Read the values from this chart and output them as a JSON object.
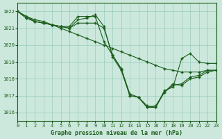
{
  "title": "Graphe pression niveau de la mer (hPa)",
  "bg_color": "#cce8dc",
  "grid_color": "#99ccbb",
  "line_color": "#1a5c1a",
  "marker": "+",
  "xlim": [
    0,
    23
  ],
  "ylim": [
    1015.5,
    1022.5
  ],
  "yticks": [
    1016,
    1017,
    1018,
    1019,
    1020,
    1021,
    1022
  ],
  "xticks": [
    0,
    1,
    2,
    3,
    4,
    5,
    6,
    7,
    8,
    9,
    10,
    11,
    12,
    13,
    14,
    15,
    16,
    17,
    18,
    19,
    20,
    21,
    22,
    23
  ],
  "lines": [
    {
      "x": [
        0,
        1,
        2,
        3,
        4,
        5,
        6,
        7,
        8,
        9,
        10,
        11,
        12,
        13,
        14,
        15,
        16,
        17,
        18,
        19,
        20,
        21,
        22,
        23
      ],
      "y": [
        1022.0,
        1021.7,
        1021.5,
        1021.4,
        1021.2,
        1021.0,
        1020.8,
        1020.6,
        1020.4,
        1020.2,
        1020.0,
        1019.8,
        1019.6,
        1019.4,
        1019.2,
        1019.0,
        1018.8,
        1018.6,
        1018.5,
        1018.4,
        1018.4,
        1018.4,
        1018.5,
        1018.5
      ]
    },
    {
      "x": [
        0,
        1,
        2,
        3,
        4,
        5,
        6,
        7,
        8,
        9,
        10,
        11,
        12,
        13,
        14,
        15,
        16,
        17,
        18,
        19,
        20,
        21,
        22,
        23
      ],
      "y": [
        1022.0,
        1021.7,
        1021.4,
        1021.3,
        1021.2,
        1021.1,
        1021.1,
        1021.7,
        1021.7,
        1021.7,
        1020.2,
        1019.4,
        1018.6,
        1017.1,
        1016.9,
        1016.3,
        1016.3,
        1017.2,
        1017.6,
        1017.7,
        1018.1,
        1018.2,
        1018.5,
        1018.5
      ]
    },
    {
      "x": [
        0,
        1,
        2,
        3,
        4,
        5,
        6,
        7,
        8,
        9,
        10,
        11,
        12,
        13,
        14,
        15,
        16,
        17,
        18,
        19,
        20,
        21,
        22,
        23
      ],
      "y": [
        1022.0,
        1021.6,
        1021.4,
        1021.3,
        1021.2,
        1021.1,
        1021.0,
        1021.5,
        1021.6,
        1021.8,
        1021.1,
        1019.3,
        1018.5,
        1017.0,
        1016.9,
        1016.3,
        1016.4,
        1017.2,
        1017.7,
        1017.6,
        1018.0,
        1018.1,
        1018.4,
        1018.5
      ]
    },
    {
      "x": [
        0,
        1,
        2,
        3,
        4,
        5,
        6,
        7,
        8,
        9,
        10,
        11,
        12,
        13,
        14,
        15,
        16,
        17,
        18,
        19,
        20,
        21,
        22,
        23
      ],
      "y": [
        1022.0,
        1021.6,
        1021.4,
        1021.3,
        1021.2,
        1021.1,
        1021.0,
        1021.3,
        1021.3,
        1021.3,
        1021.0,
        1019.4,
        1018.6,
        1017.0,
        1016.9,
        1016.4,
        1016.3,
        1017.3,
        1017.5,
        1019.2,
        1019.5,
        1019.0,
        1018.9,
        1018.9
      ]
    }
  ]
}
